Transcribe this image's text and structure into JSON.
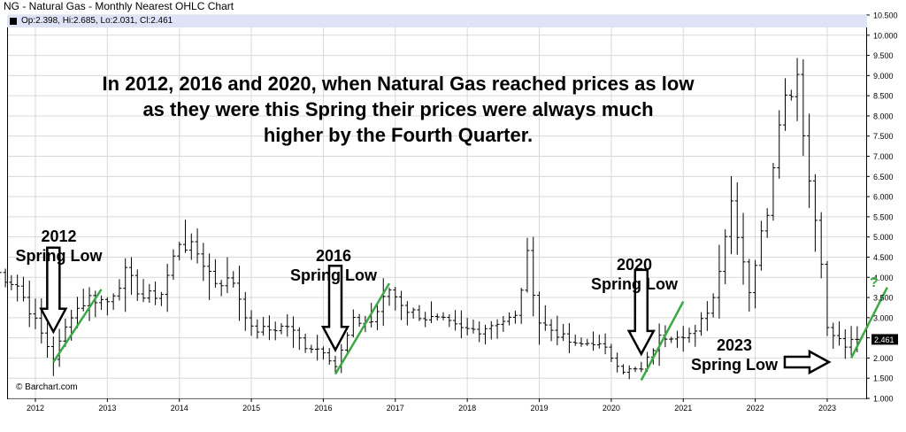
{
  "header": {
    "title": "NG - Natural Gas - Monthly Nearest OHLC Chart",
    "ohlc": "Op:2.398, Hi:2.685, Lo:2.031, Cl:2.461"
  },
  "source": "© Barchart.com",
  "annotations": {
    "headline_lines": [
      "In 2012, 2016 and 2020, when Natural Gas reached prices as low",
      "as they were this Spring their prices were always much",
      "higher by the Fourth Quarter."
    ],
    "l2012_a": "2012",
    "l2012_b": "Spring Low",
    "l2016_a": "2016",
    "l2016_b": "Spring Low",
    "l2020_a": "2020",
    "l2020_b": "Spring Low",
    "l2023_a": "2023",
    "l2023_b": "Spring Low",
    "question": "?"
  },
  "colors": {
    "bars": "#000000",
    "trend": "#3aa843",
    "last_price_bg": "#000000",
    "header_bg": "#dfe3f7"
  },
  "chart_data": {
    "type": "ohlc",
    "title": "NG - Natural Gas - Monthly Nearest OHLC Chart",
    "interval": "monthly",
    "x_ticks": [
      "2012",
      "2013",
      "2014",
      "2015",
      "2016",
      "2017",
      "2018",
      "2019",
      "2020",
      "2021",
      "2022",
      "2023"
    ],
    "y_ticks": [
      1.0,
      1.5,
      2.0,
      2.5,
      3.0,
      3.5,
      4.0,
      4.5,
      5.0,
      5.5,
      6.0,
      6.5,
      7.0,
      7.5,
      8.0,
      8.5,
      9.0,
      9.5,
      10.0,
      10.5
    ],
    "y_tick_labels": [
      "1.000",
      "1.500",
      "2.000",
      "2.500",
      "3.000",
      "3.500",
      "4.000",
      "4.500",
      "5.000",
      "5.500",
      "6.000",
      "6.500",
      "7.000",
      "7.500",
      "8.000",
      "8.500",
      "9.000",
      "9.500",
      "10.000",
      "10.500"
    ],
    "ylim": [
      1.0,
      10.5
    ],
    "last_price": 2.461,
    "last_price_label": "2.461",
    "anchors": [
      {
        "date": "2011-07",
        "v": 4.1
      },
      {
        "date": "2011-10",
        "v": 3.8
      },
      {
        "date": "2012-01",
        "v": 2.9
      },
      {
        "date": "2012-04",
        "v": 2.0
      },
      {
        "date": "2012-07",
        "v": 3.1
      },
      {
        "date": "2012-10",
        "v": 3.5
      },
      {
        "date": "2013-01",
        "v": 3.4
      },
      {
        "date": "2013-04",
        "v": 4.1
      },
      {
        "date": "2013-07",
        "v": 3.5
      },
      {
        "date": "2013-10",
        "v": 3.6
      },
      {
        "date": "2014-01",
        "v": 4.9
      },
      {
        "date": "2014-04",
        "v": 4.6
      },
      {
        "date": "2014-07",
        "v": 3.9
      },
      {
        "date": "2014-10",
        "v": 3.9
      },
      {
        "date": "2015-01",
        "v": 2.7
      },
      {
        "date": "2015-04",
        "v": 2.7
      },
      {
        "date": "2015-07",
        "v": 2.8
      },
      {
        "date": "2015-10",
        "v": 2.3
      },
      {
        "date": "2016-01",
        "v": 2.2
      },
      {
        "date": "2016-03",
        "v": 1.8
      },
      {
        "date": "2016-06",
        "v": 2.9
      },
      {
        "date": "2016-09",
        "v": 2.9
      },
      {
        "date": "2016-12",
        "v": 3.7
      },
      {
        "date": "2017-03",
        "v": 3.2
      },
      {
        "date": "2017-06",
        "v": 3.0
      },
      {
        "date": "2017-09",
        "v": 2.9
      },
      {
        "date": "2017-12",
        "v": 2.7
      },
      {
        "date": "2018-03",
        "v": 2.7
      },
      {
        "date": "2018-06",
        "v": 2.9
      },
      {
        "date": "2018-09",
        "v": 3.0
      },
      {
        "date": "2018-11",
        "v": 4.5
      },
      {
        "date": "2019-01",
        "v": 2.9
      },
      {
        "date": "2019-04",
        "v": 2.6
      },
      {
        "date": "2019-07",
        "v": 2.3
      },
      {
        "date": "2019-10",
        "v": 2.4
      },
      {
        "date": "2019-12",
        "v": 2.2
      },
      {
        "date": "2020-03",
        "v": 1.7
      },
      {
        "date": "2020-06",
        "v": 1.7
      },
      {
        "date": "2020-09",
        "v": 2.5
      },
      {
        "date": "2020-12",
        "v": 2.6
      },
      {
        "date": "2021-03",
        "v": 2.6
      },
      {
        "date": "2021-06",
        "v": 3.5
      },
      {
        "date": "2021-09",
        "v": 5.9
      },
      {
        "date": "2021-12",
        "v": 3.7
      },
      {
        "date": "2022-03",
        "v": 5.7
      },
      {
        "date": "2022-05",
        "v": 8.1
      },
      {
        "date": "2022-08",
        "v": 9.1
      },
      {
        "date": "2022-10",
        "v": 6.4
      },
      {
        "date": "2022-12",
        "v": 4.5
      },
      {
        "date": "2023-01",
        "v": 2.7
      },
      {
        "date": "2023-04",
        "v": 2.3
      },
      {
        "date": "2023-06",
        "v": 2.46
      }
    ],
    "trend_lines": [
      {
        "label": "2012",
        "from": {
          "date": "2012-04",
          "v": 1.9
        },
        "to": {
          "date": "2012-12",
          "v": 3.7
        }
      },
      {
        "label": "2016",
        "from": {
          "date": "2016-03",
          "v": 1.6
        },
        "to": {
          "date": "2016-12",
          "v": 3.85
        }
      },
      {
        "label": "2020",
        "from": {
          "date": "2020-06",
          "v": 1.45
        },
        "to": {
          "date": "2021-01",
          "v": 3.4
        }
      },
      {
        "label": "2023",
        "from": {
          "date": "2023-05",
          "v": 2.0
        },
        "to": {
          "date": "2023-11",
          "v": 3.75
        }
      }
    ],
    "arrows": [
      {
        "label": "2012 Spring Low",
        "direction": "down",
        "date": "2012-04",
        "tip": 2.65
      },
      {
        "label": "2016 Spring Low",
        "direction": "down",
        "date": "2016-03",
        "tip": 2.2
      },
      {
        "label": "2020 Spring Low",
        "direction": "down",
        "date": "2020-06",
        "tip": 2.1
      },
      {
        "label": "2023 Spring Low",
        "direction": "right",
        "date": "2023-01",
        "tip": 1.9
      }
    ]
  }
}
